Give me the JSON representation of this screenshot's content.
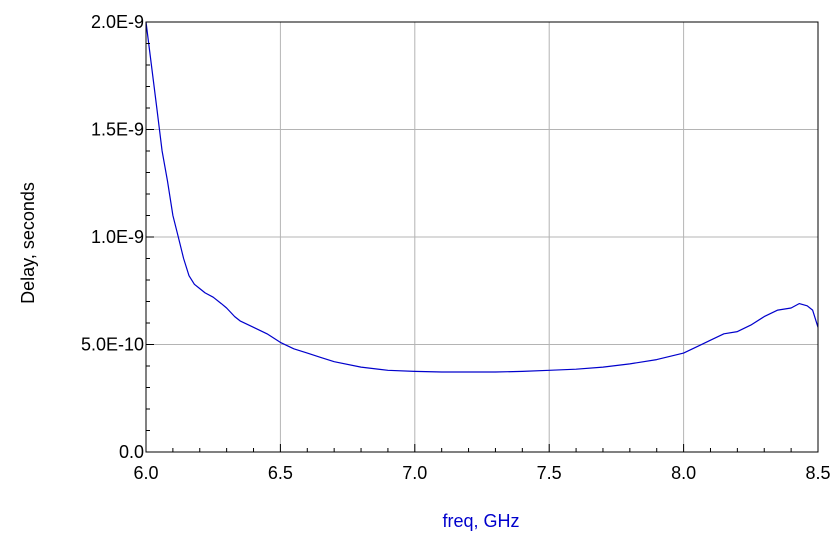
{
  "chart_data": {
    "type": "line",
    "title": "",
    "xlabel": "freq, GHz",
    "ylabel": "Delay, seconds",
    "xlim": [
      6.0,
      8.5
    ],
    "ylim": [
      0,
      2e-09
    ],
    "grid": true,
    "legend": "none",
    "x_ticks": [
      6.0,
      6.5,
      7.0,
      7.5,
      8.0,
      8.5
    ],
    "x_tick_labels": [
      "6.0",
      "6.5",
      "7.0",
      "7.5",
      "8.0",
      "8.5"
    ],
    "y_ticks": [
      0,
      5e-10,
      1e-09,
      1.5e-09,
      2e-09
    ],
    "y_tick_labels": [
      "0.0",
      "5.0E-10",
      "1.0E-9",
      "1.5E-9",
      "2.0E-9"
    ],
    "colors": {
      "series": "#0000cc",
      "xlabel": "#0000cc",
      "ylabel": "#000000",
      "grid": "#b4b4b4"
    },
    "series": [
      {
        "x": [
          6.0,
          6.02,
          6.04,
          6.06,
          6.08,
          6.1,
          6.12,
          6.14,
          6.16,
          6.18,
          6.2,
          6.22,
          6.25,
          6.28,
          6.3,
          6.33,
          6.35,
          6.4,
          6.45,
          6.5,
          6.55,
          6.6,
          6.65,
          6.7,
          6.8,
          6.9,
          7.0,
          7.1,
          7.2,
          7.3,
          7.4,
          7.5,
          7.6,
          7.7,
          7.8,
          7.9,
          8.0,
          8.05,
          8.1,
          8.15,
          8.2,
          8.25,
          8.3,
          8.35,
          8.4,
          8.43,
          8.46,
          8.48,
          8.5
        ],
        "y": [
          2e-09,
          1.8e-09,
          1.6e-09,
          1.4e-09,
          1.26e-09,
          1.1e-09,
          1e-09,
          9e-10,
          8.2e-10,
          7.8e-10,
          7.6e-10,
          7.4e-10,
          7.2e-10,
          6.9e-10,
          6.7e-10,
          6.3e-10,
          6.1e-10,
          5.8e-10,
          5.5e-10,
          5.1e-10,
          4.8e-10,
          4.6e-10,
          4.4e-10,
          4.2e-10,
          3.95e-10,
          3.8e-10,
          3.75e-10,
          3.72e-10,
          3.72e-10,
          3.72e-10,
          3.75e-10,
          3.8e-10,
          3.85e-10,
          3.95e-10,
          4.1e-10,
          4.3e-10,
          4.6e-10,
          4.9e-10,
          5.2e-10,
          5.5e-10,
          5.6e-10,
          5.9e-10,
          6.3e-10,
          6.6e-10,
          6.7e-10,
          6.9e-10,
          6.8e-10,
          6.6e-10,
          5.8e-10
        ]
      }
    ]
  }
}
